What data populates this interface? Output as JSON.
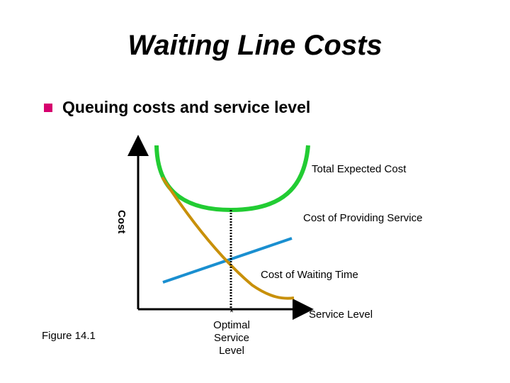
{
  "title": "Waiting Line Costs",
  "bullet": "Queuing costs and service level",
  "figure_label": "Figure 14.1",
  "labels": {
    "total_cost": "Total Expected Cost",
    "providing_cost": "Cost of Providing Service",
    "waiting_cost": "Cost of Waiting Time",
    "y_axis": "Cost",
    "x_axis": "Service Level",
    "optimal_star": "*",
    "optimal_1": "Optimal",
    "optimal_2": "Service",
    "optimal_3": "Level"
  },
  "colors": {
    "bullet": "#d6006e",
    "total_curve": "#22cc33",
    "providing_line": "#1a8fd0",
    "waiting_curve": "#c8900a",
    "axes": "#000000"
  }
}
